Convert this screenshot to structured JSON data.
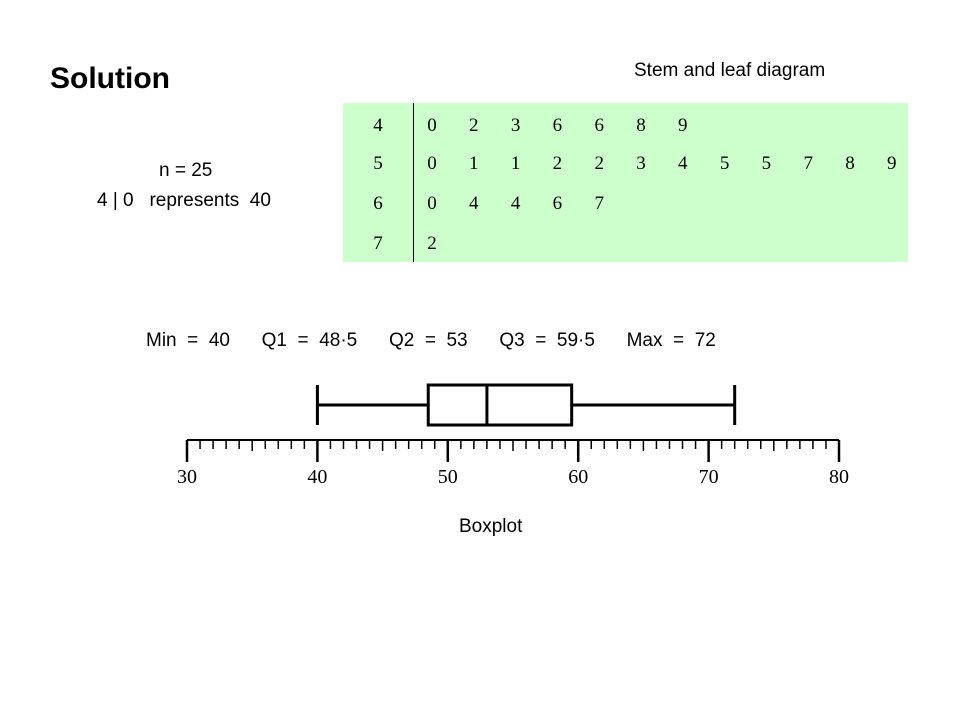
{
  "title": "Solution",
  "stem_leaf": {
    "caption": "Stem and leaf diagram",
    "n_text": "n = 25",
    "key_text": "4 | 0   represents  40",
    "rows": [
      {
        "stem": "4",
        "leaves": [
          "0",
          "2",
          "3",
          "6",
          "6",
          "8",
          "9"
        ]
      },
      {
        "stem": "5",
        "leaves": [
          "0",
          "1",
          "1",
          "2",
          "2",
          "3",
          "4",
          "5",
          "5",
          "7",
          "8",
          "9"
        ]
      },
      {
        "stem": "6",
        "leaves": [
          "0",
          "4",
          "4",
          "6",
          "7"
        ]
      },
      {
        "stem": "7",
        "leaves": [
          "2"
        ]
      }
    ],
    "background": "#ccffcc"
  },
  "stats": {
    "min": "Min  =  40",
    "q1": "Q1  =  48·5",
    "q2": "Q2  =  53",
    "q3": "Q3  =  59·5",
    "max": "Max  =  72"
  },
  "chart_data": {
    "type": "boxplot",
    "min": 40,
    "q1": 48.5,
    "median": 53,
    "q3": 59.5,
    "max": 72,
    "axis": {
      "range": [
        30,
        80
      ],
      "major_ticks": [
        30,
        40,
        50,
        60,
        70,
        80
      ],
      "minor_step": 1
    },
    "caption": "Boxplot"
  }
}
